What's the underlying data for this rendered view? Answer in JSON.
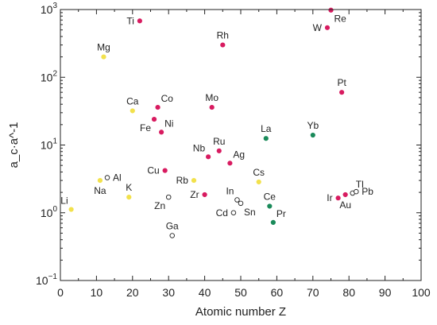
{
  "chart_data": {
    "type": "scatter",
    "xlabel": "Atomic number Z",
    "ylabel": "a_c·a^-1",
    "xlim": [
      0,
      100
    ],
    "ylim": [
      0.1,
      1000
    ],
    "yscale": "log",
    "grid": false,
    "xticks": [
      "0",
      "10",
      "20",
      "30",
      "40",
      "50",
      "60",
      "70",
      "80",
      "90",
      "100"
    ],
    "yticks": [
      {
        "value": 0.1,
        "base": "10",
        "exp": "−1"
      },
      {
        "value": 1,
        "base": "10",
        "exp": "0"
      },
      {
        "value": 10,
        "base": "10",
        "exp": "1"
      },
      {
        "value": 100,
        "base": "10",
        "exp": "2"
      },
      {
        "value": 1000,
        "base": "10",
        "exp": "3"
      }
    ],
    "groups": {
      "red": {
        "color": "#d81b60",
        "filled": true
      },
      "yellow": {
        "color": "#f2e14c",
        "filled": true
      },
      "green": {
        "color": "#1a8a5a",
        "filled": true
      },
      "open": {
        "color": "#ffffff",
        "filled": false
      }
    },
    "points": [
      {
        "label": "Li",
        "x": 3,
        "y": 1.12,
        "group": "yellow",
        "lpos": "above-left"
      },
      {
        "label": "Na",
        "x": 11,
        "y": 3.0,
        "group": "yellow",
        "lpos": "below"
      },
      {
        "label": "Mg",
        "x": 12,
        "y": 200,
        "group": "yellow",
        "lpos": "above"
      },
      {
        "label": "Al",
        "x": 13,
        "y": 3.3,
        "group": "open",
        "lpos": "right"
      },
      {
        "label": "K",
        "x": 19,
        "y": 1.7,
        "group": "yellow",
        "lpos": "above"
      },
      {
        "label": "Ca",
        "x": 20,
        "y": 32,
        "group": "yellow",
        "lpos": "above"
      },
      {
        "label": "Ti",
        "x": 22,
        "y": 680,
        "group": "red",
        "lpos": "left"
      },
      {
        "label": "Fe",
        "x": 26,
        "y": 24,
        "group": "red",
        "lpos": "below-left"
      },
      {
        "label": "Co",
        "x": 27,
        "y": 36,
        "group": "red",
        "lpos": "above-right"
      },
      {
        "label": "Ni",
        "x": 28,
        "y": 15.5,
        "group": "red",
        "lpos": "above-right"
      },
      {
        "label": "Cu",
        "x": 29,
        "y": 4.2,
        "group": "red",
        "lpos": "left"
      },
      {
        "label": "Zn",
        "x": 30,
        "y": 1.7,
        "group": "open",
        "lpos": "below-left"
      },
      {
        "label": "Ga",
        "x": 31,
        "y": 0.46,
        "group": "open",
        "lpos": "above"
      },
      {
        "label": "Rb",
        "x": 37,
        "y": 3.0,
        "group": "yellow",
        "lpos": "left"
      },
      {
        "label": "Zr",
        "x": 40,
        "y": 1.85,
        "group": "red",
        "lpos": "left"
      },
      {
        "label": "Nb",
        "x": 41,
        "y": 6.7,
        "group": "red",
        "lpos": "above-left"
      },
      {
        "label": "Mo",
        "x": 42,
        "y": 36,
        "group": "red",
        "lpos": "above"
      },
      {
        "label": "Ru",
        "x": 44,
        "y": 8.2,
        "group": "red",
        "lpos": "above"
      },
      {
        "label": "Rh",
        "x": 45,
        "y": 300,
        "group": "red",
        "lpos": "above"
      },
      {
        "label": "Ag",
        "x": 47,
        "y": 5.4,
        "group": "red",
        "lpos": "above-right"
      },
      {
        "label": "In",
        "x": 49,
        "y": 1.55,
        "group": "open",
        "lpos": "above-left"
      },
      {
        "label": "Sn",
        "x": 50,
        "y": 1.38,
        "group": "open",
        "lpos": "below-right"
      },
      {
        "label": "Cd",
        "x": 48,
        "y": 1.0,
        "group": "open",
        "lpos": "left"
      },
      {
        "label": "Cs",
        "x": 55,
        "y": 2.85,
        "group": "yellow",
        "lpos": "above"
      },
      {
        "label": "La",
        "x": 57,
        "y": 12.5,
        "group": "green",
        "lpos": "above"
      },
      {
        "label": "Ce",
        "x": 58,
        "y": 1.25,
        "group": "green",
        "lpos": "above"
      },
      {
        "label": "Pr",
        "x": 59,
        "y": 0.72,
        "group": "green",
        "lpos": "above-right"
      },
      {
        "label": "Yb",
        "x": 70,
        "y": 14,
        "group": "green",
        "lpos": "above"
      },
      {
        "label": "W",
        "x": 74,
        "y": 540,
        "group": "red",
        "lpos": "left"
      },
      {
        "label": "Re",
        "x": 75,
        "y": 980,
        "group": "red",
        "lpos": "below-right"
      },
      {
        "label": "Ir",
        "x": 77,
        "y": 1.65,
        "group": "red",
        "lpos": "left"
      },
      {
        "label": "Pt",
        "x": 78,
        "y": 60,
        "group": "red",
        "lpos": "above"
      },
      {
        "label": "Au",
        "x": 79,
        "y": 1.85,
        "group": "red",
        "lpos": "below"
      },
      {
        "label": "Tl",
        "x": 81,
        "y": 1.95,
        "group": "open",
        "lpos": "above-right"
      },
      {
        "label": "Pb",
        "x": 82,
        "y": 2.05,
        "group": "open",
        "lpos": "right"
      }
    ]
  }
}
